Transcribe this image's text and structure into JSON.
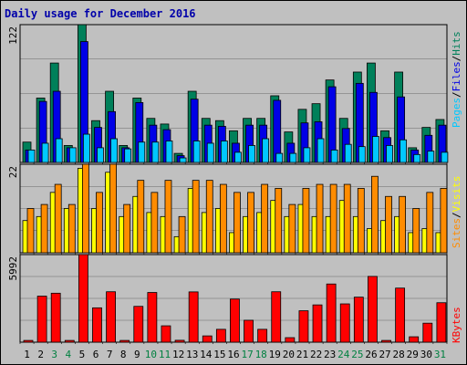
{
  "title": "Daily usage for December 2016",
  "colors": {
    "hits": "#00805a",
    "files": "#0000e6",
    "pages": "#00c8ff",
    "visits": "#ffff00",
    "sites": "#ff8c00",
    "kbytes": "#ff0000",
    "weekend": "#008040",
    "weekday": "#000000"
  },
  "panels": {
    "top": {
      "max_label": "122",
      "legend": [
        "Pages",
        "Files",
        "Hits"
      ]
    },
    "mid": {
      "max_label": "22",
      "legend": [
        "Sites",
        "Visits"
      ]
    },
    "bot": {
      "max_label": "5992",
      "legend": [
        "KBytes"
      ]
    }
  },
  "chart_data": {
    "type": "bar",
    "title": "Daily usage for December 2016",
    "categories": [
      "1",
      "2",
      "3",
      "4",
      "5",
      "6",
      "7",
      "8",
      "9",
      "10",
      "11",
      "12",
      "13",
      "14",
      "15",
      "16",
      "17",
      "18",
      "19",
      "20",
      "21",
      "22",
      "23",
      "24",
      "25",
      "26",
      "27",
      "28",
      "29",
      "30",
      "31"
    ],
    "weekend_days": [
      3,
      4,
      10,
      11,
      17,
      18,
      24,
      25,
      31
    ],
    "panels": [
      {
        "name": "top",
        "ylim": [
          0,
          122
        ],
        "series": [
          {
            "name": "Hits",
            "values": [
              18,
              57,
              88,
              15,
              122,
              37,
              63,
              15,
              57,
              39,
              34,
              8,
              63,
              39,
              37,
              28,
              39,
              39,
              59,
              27,
              47,
              52,
              73,
              39,
              80,
              88,
              28,
              80,
              13,
              31,
              38
            ]
          },
          {
            "name": "Files",
            "values": [
              11,
              54,
              63,
              13,
              107,
              31,
              45,
              13,
              53,
              33,
              29,
              6,
              56,
              33,
              32,
              17,
              33,
              33,
              55,
              17,
              35,
              36,
              67,
              30,
              70,
              62,
              22,
              58,
              11,
              24,
              33
            ]
          },
          {
            "name": "Pages",
            "values": [
              11,
              17,
              21,
              13,
              25,
              13,
              21,
              12,
              18,
              18,
              19,
              4,
              19,
              17,
              19,
              9,
              15,
              21,
              8,
              8,
              13,
              21,
              11,
              16,
              14,
              23,
              15,
              20,
              7,
              10,
              9
            ]
          }
        ]
      },
      {
        "name": "mid",
        "ylim": [
          0,
          22
        ],
        "series": [
          {
            "name": "Visits",
            "values": [
              8,
              9,
              15,
              11,
              21,
              11,
              20,
              9,
              14,
              10,
              9,
              4,
              16,
              10,
              11,
              5,
              9,
              10,
              13,
              9,
              12,
              9,
              9,
              13,
              9,
              6,
              8,
              9,
              5,
              6,
              5
            ]
          },
          {
            "name": "Sites",
            "values": [
              11,
              12,
              17,
              12,
              22,
              15,
              22,
              12,
              18,
              15,
              18,
              9,
              18,
              18,
              17,
              15,
              15,
              17,
              16,
              12,
              16,
              17,
              17,
              17,
              16,
              19,
              14,
              14,
              11,
              15,
              16
            ]
          }
        ]
      },
      {
        "name": "bot",
        "ylim": [
          0,
          5992
        ],
        "series": [
          {
            "name": "KBytes",
            "values": [
              120,
              3150,
              3350,
              120,
              5992,
              2350,
              3450,
              120,
              2450,
              3400,
              1120,
              130,
              3440,
              430,
              880,
              2950,
              1500,
              880,
              3450,
              310,
              2150,
              2550,
              3980,
              2620,
              3080,
              4500,
              120,
              3700,
              370,
              1300,
              2700
            ]
          }
        ]
      }
    ]
  }
}
